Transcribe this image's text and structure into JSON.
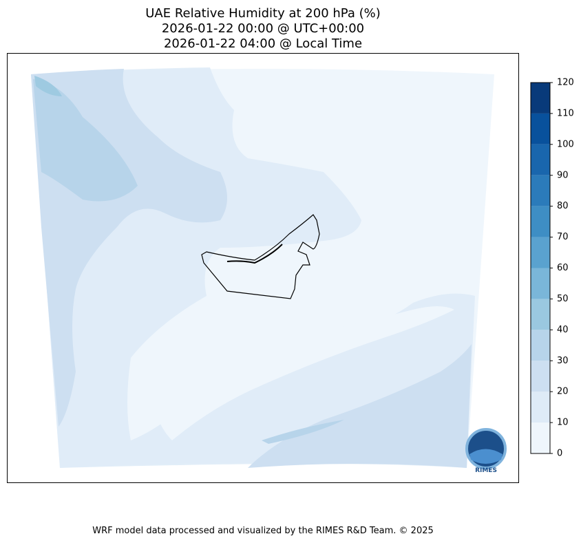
{
  "map": {
    "title": [
      "UAE Relative Humidity at 200 hPa (%)",
      "2026-01-22 00:00 @ UTC+00:00",
      "2026-01-22 04:00 @ Local Time"
    ],
    "colorbar": {
      "levels": [
        0,
        10,
        20,
        30,
        40,
        50,
        60,
        70,
        80,
        90,
        100,
        110,
        120
      ],
      "colors": [
        "#eff6fc",
        "#deebf7",
        "#cddff1",
        "#b7d4ea",
        "#9ac8e0",
        "#7ab6d9",
        "#5aa2cf",
        "#3e8ec4",
        "#2b7bba",
        "#1966ad",
        "#08519c",
        "#083a7a"
      ]
    },
    "logo": "RIMES",
    "footer": "WRF model data processed and visualized by the RIMES R&D Team. © 2025"
  }
}
